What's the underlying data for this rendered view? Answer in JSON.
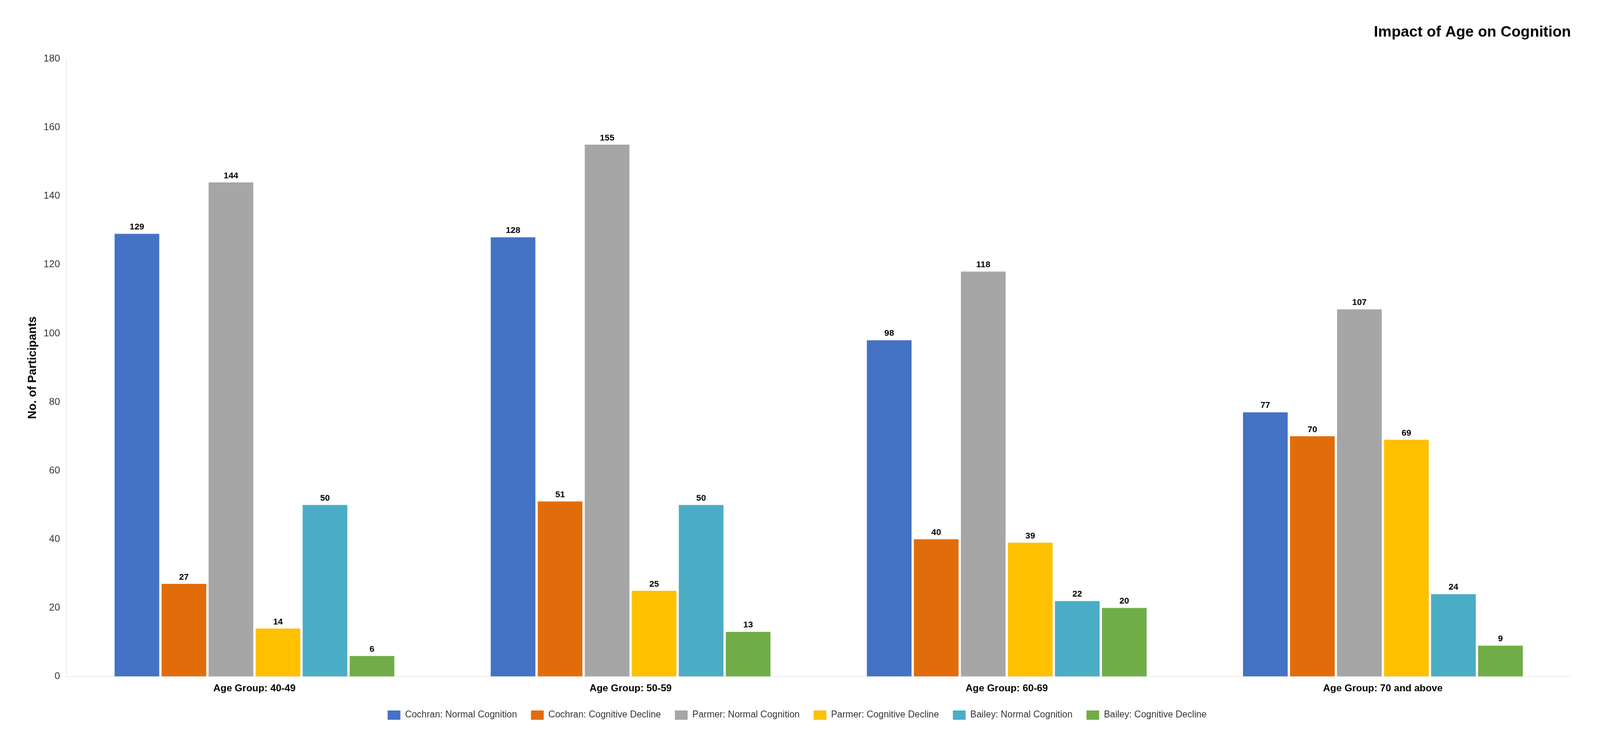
{
  "chart_data": {
    "type": "bar",
    "title": "Impact of Age on Cognition",
    "ylabel": "No. of Participants",
    "categories": [
      "Age Group: 40-49",
      "Age Group: 50-59",
      "Age Group: 60-69",
      "Age Group: 70 and above"
    ],
    "series": [
      {
        "name": "Cochran: Normal Cognition",
        "color": "#4472C4",
        "values": [
          129,
          128,
          98,
          77
        ]
      },
      {
        "name": "Cochran: Cognitive Decline",
        "color": "#E36C0A",
        "values": [
          27,
          51,
          40,
          70
        ]
      },
      {
        "name": "Parmer: Normal Cognition",
        "color": "#A6A6A6",
        "values": [
          144,
          155,
          118,
          107
        ]
      },
      {
        "name": "Parmer: Cognitive Decline",
        "color": "#FFC000",
        "values": [
          14,
          25,
          39,
          69
        ]
      },
      {
        "name": "Bailey: Normal Cognition",
        "color": "#4BACC6",
        "values": [
          50,
          50,
          22,
          24
        ]
      },
      {
        "name": "Bailey: Cognitive Decline",
        "color": "#70AD47",
        "values": [
          6,
          13,
          20,
          9
        ]
      }
    ],
    "ylim": [
      0,
      180
    ],
    "yticks": [
      0,
      20,
      40,
      60,
      80,
      100,
      120,
      140,
      160,
      180
    ],
    "grid": false,
    "legend": "bottom",
    "data_labels": true
  }
}
